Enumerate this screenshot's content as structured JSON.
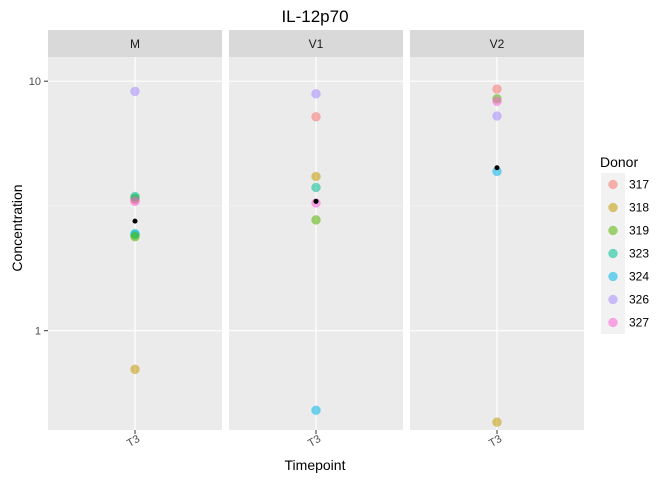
{
  "chart_data": {
    "type": "scatter",
    "title": "IL-12p70",
    "xlabel": "Timepoint",
    "ylabel": "Concentration",
    "y_scale": "log10",
    "ylim": [
      0.4,
      12.5
    ],
    "y_ticks": [
      1,
      10
    ],
    "y_tick_labels": [
      "1",
      "10"
    ],
    "x_tick_labels": [
      "T3"
    ],
    "grid": true,
    "legend_title": "Donor",
    "legend_position": "right",
    "donors": [
      {
        "name": "317",
        "color": "#F8766D"
      },
      {
        "name": "318",
        "color": "#C49A00"
      },
      {
        "name": "319",
        "color": "#53B400"
      },
      {
        "name": "323",
        "color": "#00C094"
      },
      {
        "name": "324",
        "color": "#00B6EB"
      },
      {
        "name": "326",
        "color": "#A58AFF"
      },
      {
        "name": "327",
        "color": "#FB61D7"
      }
    ],
    "panels": [
      {
        "label": "M",
        "mean": 2.75,
        "points": [
          {
            "donor": "326",
            "y": 9.1
          },
          {
            "donor": "317",
            "y": 3.35
          },
          {
            "donor": "319",
            "y": 3.4
          },
          {
            "donor": "323",
            "y": 3.45
          },
          {
            "donor": "327",
            "y": 3.3
          },
          {
            "donor": "324",
            "y": 2.45
          },
          {
            "donor": "323",
            "y": 2.42
          },
          {
            "donor": "319",
            "y": 2.38
          },
          {
            "donor": "318",
            "y": 0.7
          }
        ]
      },
      {
        "label": "V1",
        "mean": 3.3,
        "points": [
          {
            "donor": "326",
            "y": 8.9
          },
          {
            "donor": "317",
            "y": 7.2
          },
          {
            "donor": "318",
            "y": 4.15
          },
          {
            "donor": "323",
            "y": 3.75
          },
          {
            "donor": "327",
            "y": 3.25
          },
          {
            "donor": "319",
            "y": 2.78
          },
          {
            "donor": "324",
            "y": 0.48
          }
        ]
      },
      {
        "label": "V2",
        "mean": 4.5,
        "points": [
          {
            "donor": "317",
            "y": 9.3
          },
          {
            "donor": "319",
            "y": 8.5
          },
          {
            "donor": "327",
            "y": 8.3
          },
          {
            "donor": "326",
            "y": 7.25
          },
          {
            "donor": "324",
            "y": 4.35
          },
          {
            "donor": "318",
            "y": 0.43
          }
        ]
      }
    ]
  }
}
